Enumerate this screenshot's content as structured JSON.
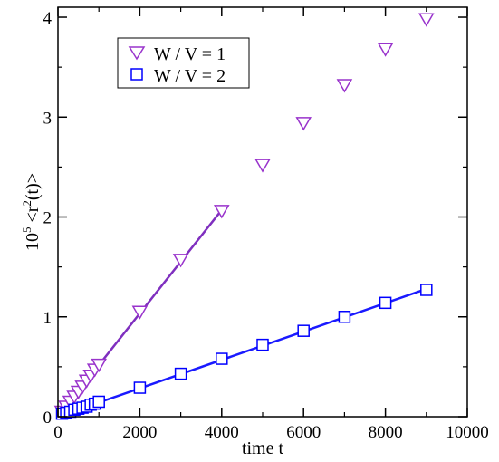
{
  "chart_data": {
    "type": "scatter",
    "xlabel": "time t",
    "ylabel": {
      "prefix": "10",
      "prefix_exponent": "5",
      "open": "<r",
      "exponent": "2",
      "close": "(t)>"
    },
    "xlim": [
      0,
      10000
    ],
    "ylim": [
      0,
      4.1
    ],
    "xticks": [
      0,
      2000,
      4000,
      6000,
      8000,
      10000
    ],
    "xtick_labels": [
      "0",
      "2000",
      "4000",
      "6000",
      "8000",
      "10000"
    ],
    "yticks": [
      0,
      1,
      2,
      3,
      4
    ],
    "ytick_labels": [
      "0",
      "1",
      "2",
      "3",
      "4"
    ],
    "grid": false,
    "legend_position": "top-left",
    "series": [
      {
        "name": "W / V = 1",
        "marker": "triangle-down",
        "color": "#9933cc",
        "x": [
          100,
          200,
          300,
          400,
          500,
          600,
          700,
          800,
          900,
          1000,
          2000,
          3000,
          4000,
          5000,
          6000,
          7000,
          8000,
          9000
        ],
        "y": [
          0.05,
          0.1,
          0.15,
          0.2,
          0.25,
          0.3,
          0.36,
          0.41,
          0.47,
          0.52,
          1.05,
          1.57,
          2.06,
          2.52,
          2.94,
          3.32,
          3.68,
          3.98
        ],
        "fit": {
          "x": [
            0,
            4000
          ],
          "y": [
            0.0,
            2.07
          ],
          "color": "#7f2fbf"
        }
      },
      {
        "name": "W / V = 2",
        "marker": "square",
        "color": "#0000ff",
        "x": [
          100,
          200,
          300,
          400,
          500,
          600,
          700,
          800,
          900,
          1000,
          2000,
          3000,
          4000,
          5000,
          6000,
          7000,
          8000,
          9000
        ],
        "y": [
          0.03,
          0.04,
          0.05,
          0.07,
          0.08,
          0.09,
          0.1,
          0.12,
          0.13,
          0.15,
          0.29,
          0.43,
          0.58,
          0.72,
          0.86,
          1.0,
          1.14,
          1.27
        ],
        "fit": {
          "x": [
            0,
            9000
          ],
          "y": [
            0.0,
            1.28
          ],
          "color": "#1a1aff"
        }
      }
    ]
  }
}
